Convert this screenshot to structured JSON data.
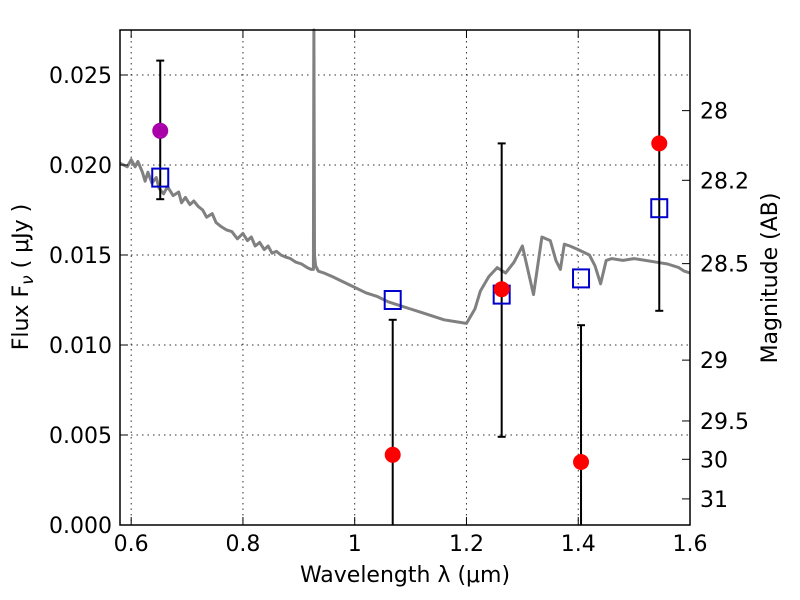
{
  "chart_data": {
    "type": "scatter",
    "title": "",
    "xlabel": "Wavelength  λ (μm)",
    "ylabel": "Flux  F",
    "ylabel_sub": "ν",
    "ylabel_unit": "  ( μJy )",
    "ylabel_right": "Magnitude (AB)",
    "xlim": [
      0.58,
      1.6
    ],
    "ylim": [
      0.0,
      0.0275
    ],
    "grid": true,
    "x_ticks": [
      0.6,
      0.8,
      1.0,
      1.2,
      1.4,
      1.6
    ],
    "x_tick_labels": [
      "0.6",
      "0.8",
      "1",
      "1.2",
      "1.4",
      "1.6"
    ],
    "y_ticks": [
      0.0,
      0.005,
      0.01,
      0.015,
      0.02,
      0.025
    ],
    "y_tick_labels": [
      "0.000",
      "0.005",
      "0.010",
      "0.015",
      "0.020",
      "0.025"
    ],
    "right_ticks": [
      {
        "label": "28",
        "flux": 0.02302
      },
      {
        "label": "28.2",
        "flux": 0.01915
      },
      {
        "label": "28.5",
        "flux": 0.01452
      },
      {
        "label": "29",
        "flux": 0.00916
      },
      {
        "label": "29.5",
        "flux": 0.00578
      },
      {
        "label": "30",
        "flux": 0.00365
      },
      {
        "label": "31",
        "flux": 0.00145
      }
    ],
    "colors": {
      "spectrum": "#808080",
      "model": "#0000cc",
      "observed": "#ff0000",
      "special": "#aa00aa",
      "errorbar": "#000000"
    },
    "series": [
      {
        "kind": "spectrum",
        "x": [
          0.58,
          0.593,
          0.6,
          0.607,
          0.612,
          0.62,
          0.625,
          0.63,
          0.637,
          0.645,
          0.65,
          0.658,
          0.665,
          0.675,
          0.685,
          0.69,
          0.697,
          0.705,
          0.712,
          0.72,
          0.728,
          0.735,
          0.745,
          0.752,
          0.76,
          0.77,
          0.78,
          0.79,
          0.8,
          0.808,
          0.815,
          0.822,
          0.83,
          0.838,
          0.845,
          0.852,
          0.86,
          0.868,
          0.875,
          0.885,
          0.895,
          0.905,
          0.915,
          0.922,
          0.926,
          0.927,
          0.928,
          0.93,
          0.935,
          0.945,
          0.96,
          0.98,
          1.0,
          1.02,
          1.04,
          1.06,
          1.08,
          1.1,
          1.12,
          1.14,
          1.16,
          1.18,
          1.2,
          1.215,
          1.225,
          1.24,
          1.255,
          1.27,
          1.285,
          1.3,
          1.32,
          1.335,
          1.35,
          1.36,
          1.368,
          1.375,
          1.385,
          1.4,
          1.42,
          1.43,
          1.44,
          1.45,
          1.46,
          1.48,
          1.5,
          1.52,
          1.54,
          1.56,
          1.58,
          1.59,
          1.6
        ],
        "y": [
          0.0201,
          0.0199,
          0.0203,
          0.0199,
          0.0202,
          0.0196,
          0.0191,
          0.0196,
          0.019,
          0.0193,
          0.0187,
          0.0184,
          0.0188,
          0.0183,
          0.0185,
          0.0179,
          0.0182,
          0.0178,
          0.018,
          0.0177,
          0.0175,
          0.0171,
          0.0173,
          0.0168,
          0.0166,
          0.0164,
          0.0163,
          0.0159,
          0.0162,
          0.0158,
          0.016,
          0.0155,
          0.0157,
          0.0153,
          0.0155,
          0.0151,
          0.0152,
          0.015,
          0.0149,
          0.0148,
          0.0146,
          0.0145,
          0.0143,
          0.0142,
          0.0142,
          0.0275,
          0.015,
          0.0144,
          0.0141,
          0.014,
          0.0138,
          0.0135,
          0.0132,
          0.0129,
          0.0127,
          0.0124,
          0.0122,
          0.012,
          0.0118,
          0.0116,
          0.0114,
          0.0113,
          0.0112,
          0.012,
          0.013,
          0.0138,
          0.0143,
          0.014,
          0.0146,
          0.0155,
          0.0128,
          0.016,
          0.0158,
          0.0147,
          0.0142,
          0.0156,
          0.0155,
          0.0153,
          0.015,
          0.0144,
          0.0134,
          0.0147,
          0.0148,
          0.0147,
          0.0148,
          0.0147,
          0.0146,
          0.0145,
          0.0143,
          0.0141,
          0.014
        ]
      },
      {
        "kind": "model",
        "marker": "open-square",
        "x": [
          0.652,
          1.068,
          1.263,
          1.405,
          1.545
        ],
        "y": [
          0.0193,
          0.0125,
          0.0128,
          0.0137,
          0.0176
        ]
      },
      {
        "kind": "observed",
        "marker": "filled-circle",
        "x": [
          0.652,
          1.068,
          1.263,
          1.405,
          1.545
        ],
        "y": [
          0.0219,
          0.0039,
          0.0131,
          0.0035,
          0.0212
        ],
        "special_index": 0,
        "yerr_low": [
          0.0181,
          0.0,
          0.0049,
          0.0,
          0.0119
        ],
        "yerr_high": [
          0.0258,
          0.0114,
          0.0212,
          0.0111,
          0.0275
        ]
      }
    ]
  }
}
